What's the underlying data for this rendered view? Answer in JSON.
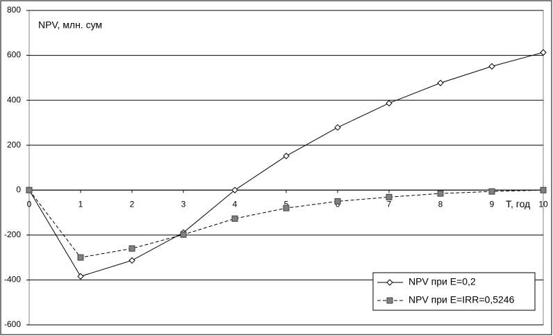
{
  "chart_data": {
    "type": "line",
    "y_label": "NPV, млн. сум",
    "x_label": "T, год",
    "x": [
      0,
      1,
      2,
      3,
      4,
      5,
      6,
      7,
      8,
      9,
      10
    ],
    "series": [
      {
        "name": "NPV при E=0,2",
        "color": "#000000",
        "marker": "diamond",
        "dashed": false,
        "values": [
          0,
          -384,
          -313,
          -189,
          0,
          152,
          279,
          387,
          477,
          551,
          613
        ]
      },
      {
        "name": "NPV при E=IRR=0,5246",
        "color": "#000000",
        "marker": "square",
        "dashed": true,
        "values": [
          0,
          -300,
          -260,
          -198,
          -127,
          -80,
          -50,
          -31,
          -15,
          -6,
          0
        ]
      }
    ],
    "xlim": [
      0,
      10
    ],
    "xticks": [
      0,
      1,
      2,
      3,
      4,
      5,
      6,
      7,
      8,
      9,
      10
    ],
    "ylim": [
      -600,
      800
    ],
    "yticks": [
      -600,
      -400,
      -200,
      0,
      200,
      400,
      600,
      800
    ],
    "grid": true,
    "legend": "lower right"
  }
}
